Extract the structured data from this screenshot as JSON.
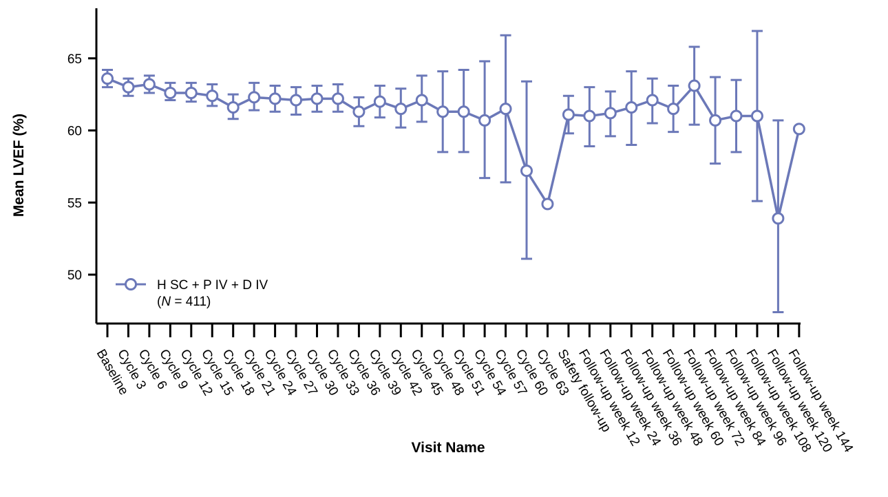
{
  "chart_data": {
    "type": "line",
    "title": "",
    "xlabel": "Visit Name",
    "ylabel": "Mean LVEF (%)",
    "ylim": [
      47,
      67
    ],
    "yticks": [
      50,
      55,
      60,
      65
    ],
    "categories": [
      "Baseline",
      "Cycle 3",
      "Cycle 6",
      "Cycle 9",
      "Cycle 12",
      "Cycle 15",
      "Cycle 18",
      "Cycle 21",
      "Cycle 24",
      "Cycle 27",
      "Cycle 30",
      "Cycle 33",
      "Cycle 36",
      "Cycle 39",
      "Cycle 42",
      "Cycle 45",
      "Cycle 48",
      "Cycle 51",
      "Cycle 54",
      "Cycle 57",
      "Cycle 60",
      "Cycle 63",
      "Safety follow-up",
      "Follow-up week 12",
      "Follow-up week 24",
      "Follow-up week 36",
      "Follow-up week 48",
      "Follow-up week 60",
      "Follow-up week 72",
      "Follow-up week 84",
      "Follow-up week 96",
      "Follow-up week 108",
      "Follow-up week 120",
      "Follow-up week 144"
    ],
    "series": [
      {
        "name": "H SC + P IV + D IV",
        "n_label_prefix": "(",
        "n_label_italic": "N",
        "n_label_suffix": " = 411)",
        "color": "#6b78b8",
        "values": [
          63.6,
          63.0,
          63.2,
          62.6,
          62.6,
          62.4,
          61.6,
          62.3,
          62.2,
          62.1,
          62.2,
          62.2,
          61.3,
          62.0,
          61.5,
          62.1,
          61.3,
          61.3,
          60.7,
          61.5,
          57.2,
          54.9,
          61.1,
          61.0,
          61.2,
          61.6,
          62.1,
          61.5,
          63.1,
          60.7,
          61.0,
          61.0,
          53.9,
          60.1
        ],
        "err_upper": [
          64.2,
          63.6,
          63.8,
          63.3,
          63.3,
          63.2,
          62.5,
          63.3,
          63.1,
          63.0,
          63.1,
          63.2,
          62.3,
          63.1,
          62.9,
          63.8,
          64.1,
          64.2,
          64.8,
          66.6,
          63.4,
          null,
          62.4,
          63.0,
          62.7,
          64.1,
          63.6,
          63.1,
          65.8,
          63.7,
          63.5,
          66.9,
          60.7,
          null
        ],
        "err_lower": [
          63.0,
          62.4,
          62.6,
          62.1,
          62.0,
          61.7,
          60.8,
          61.4,
          61.3,
          61.1,
          61.3,
          61.3,
          60.3,
          60.9,
          60.2,
          60.6,
          58.5,
          58.5,
          56.7,
          56.4,
          51.1,
          null,
          59.8,
          58.9,
          59.6,
          59.0,
          60.5,
          59.9,
          60.4,
          57.7,
          58.5,
          55.1,
          47.4,
          null
        ]
      }
    ],
    "grid": false,
    "legend_position": "bottom-left"
  }
}
